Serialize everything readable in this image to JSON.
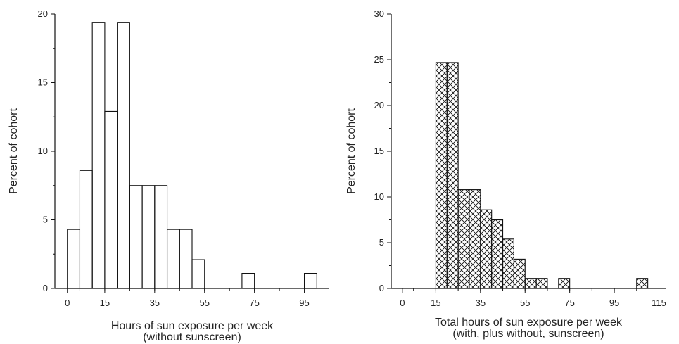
{
  "chart_data": [
    {
      "type": "bar",
      "ylabel": "Percent of cohort",
      "xlabel": "Hours of sun exposure per week",
      "xlabel2": "(without sunscreen)",
      "xlim": [
        -5,
        105
      ],
      "ylim": [
        0,
        20
      ],
      "xticks": [
        0,
        15,
        35,
        55,
        75,
        95
      ],
      "yticks": [
        0,
        5,
        10,
        15,
        20
      ],
      "bin_width": 5,
      "fill": "none",
      "bins": [
        {
          "x_start": 0,
          "value": 4.3
        },
        {
          "x_start": 5,
          "value": 8.6
        },
        {
          "x_start": 10,
          "value": 19.4
        },
        {
          "x_start": 15,
          "value": 12.9
        },
        {
          "x_start": 20,
          "value": 19.4
        },
        {
          "x_start": 25,
          "value": 7.5
        },
        {
          "x_start": 30,
          "value": 7.5
        },
        {
          "x_start": 35,
          "value": 7.5
        },
        {
          "x_start": 40,
          "value": 4.3
        },
        {
          "x_start": 45,
          "value": 4.3
        },
        {
          "x_start": 50,
          "value": 2.1
        },
        {
          "x_start": 70,
          "value": 1.1
        },
        {
          "x_start": 95,
          "value": 1.1
        }
      ]
    },
    {
      "type": "bar",
      "ylabel": "Percent of cohort",
      "xlabel": "Total hours of sun exposure per week",
      "xlabel2": "(with, plus without, sunscreen)",
      "xlim": [
        -5,
        118
      ],
      "ylim": [
        0,
        30
      ],
      "xticks": [
        0,
        15,
        35,
        55,
        75,
        95,
        115
      ],
      "yticks": [
        0,
        5,
        10,
        15,
        20,
        25,
        30
      ],
      "bin_width": 5,
      "fill": "crosshatch",
      "bins": [
        {
          "x_start": 15,
          "value": 24.7
        },
        {
          "x_start": 20,
          "value": 24.7
        },
        {
          "x_start": 25,
          "value": 10.8
        },
        {
          "x_start": 30,
          "value": 10.8
        },
        {
          "x_start": 35,
          "value": 8.6
        },
        {
          "x_start": 40,
          "value": 7.5
        },
        {
          "x_start": 45,
          "value": 5.4
        },
        {
          "x_start": 50,
          "value": 3.2
        },
        {
          "x_start": 55,
          "value": 1.1
        },
        {
          "x_start": 60,
          "value": 1.1
        },
        {
          "x_start": 70,
          "value": 1.1
        },
        {
          "x_start": 105,
          "value": 1.1
        }
      ]
    }
  ]
}
